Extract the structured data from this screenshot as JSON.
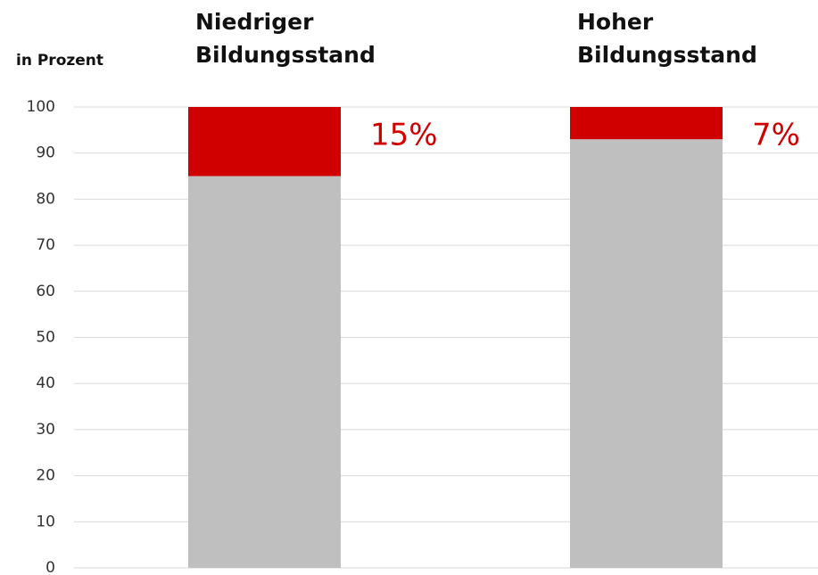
{
  "chart_data": {
    "type": "stacked_bar",
    "y_label": "in Prozent",
    "categories": [
      "Niedriger Bildungsstand",
      "Hoher Bildungsstand"
    ],
    "series": [
      {
        "color": "#bfbfbf",
        "values": [
          85,
          93
        ]
      },
      {
        "color": "#d00000",
        "values": [
          15,
          7
        ],
        "value_labels": [
          "15%",
          "7%"
        ]
      }
    ],
    "ylim": [
      0,
      100
    ],
    "yticks": [
      0,
      10,
      20,
      30,
      40,
      50,
      60,
      70,
      80,
      90,
      100
    ],
    "grid": true
  }
}
